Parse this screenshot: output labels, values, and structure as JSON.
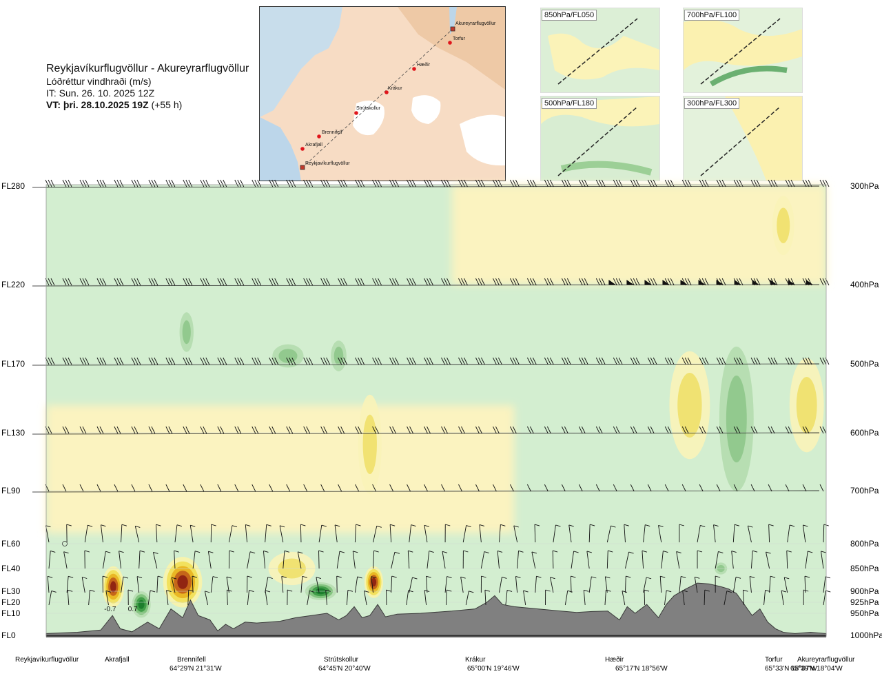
{
  "header": {
    "route": "Reykjavíkurflugvöllur - Akureyrarflugvöllur",
    "quantity": "Lóðréttur vindhraði (m/s)",
    "issue_time": "IT: Sun. 26. 10. 2025 12Z",
    "valid_prefix": "VT: þri. 28.10.2025 19Z",
    "valid_suffix": " (+55 h)"
  },
  "route_map": {
    "points": [
      {
        "name": "Akureyrarflugvöllur",
        "kind": "airport"
      },
      {
        "name": "Torfur",
        "kind": "waypoint"
      },
      {
        "name": "Hæðir",
        "kind": "waypoint"
      },
      {
        "name": "Krákur",
        "kind": "waypoint"
      },
      {
        "name": "Strútskollur",
        "kind": "waypoint"
      },
      {
        "name": "Brennifell",
        "kind": "waypoint"
      },
      {
        "name": "Akrafjall",
        "kind": "waypoint"
      },
      {
        "name": "Reykjavíkurflugvöllur",
        "kind": "airport"
      }
    ]
  },
  "level_maps": [
    {
      "label": "850hPa/FL050"
    },
    {
      "label": "700hPa/FL100"
    },
    {
      "label": "500hPa/FL180"
    },
    {
      "label": "300hPa/FL300"
    }
  ],
  "chart_data": {
    "type": "heatmap",
    "title": "Reykjavíkurflugvöllur - Akureyrarflugvöllur",
    "subtitle": "Lóðréttur vindhraði (m/s)",
    "x_range": [
      0,
      100
    ],
    "levels": [
      {
        "fl": "FL280",
        "hpa": "300hPa",
        "p": 300
      },
      {
        "fl": "FL220",
        "hpa": "400hPa",
        "p": 400
      },
      {
        "fl": "FL170",
        "hpa": "500hPa",
        "p": 500
      },
      {
        "fl": "FL130",
        "hpa": "600hPa",
        "p": 600
      },
      {
        "fl": "FL90",
        "hpa": "700hPa",
        "p": 700
      },
      {
        "fl": "FL60",
        "hpa": "800hPa",
        "p": 800
      },
      {
        "fl": "FL40",
        "hpa": "850hPa",
        "p": 850
      },
      {
        "fl": "FL30",
        "hpa": "900hPa",
        "p": 900
      },
      {
        "fl": "FL20",
        "hpa": "925hPa",
        "p": 925
      },
      {
        "fl": "FL10",
        "hpa": "950hPa",
        "p": 950
      },
      {
        "fl": "FL0",
        "hpa": "1000hPa",
        "p": 1000
      }
    ],
    "locations": [
      {
        "name": "Reykjavíkurflugvöllur",
        "coord": "",
        "x": 0
      },
      {
        "name": "Akrafjall",
        "coord": "",
        "x": 8.5
      },
      {
        "name": "Brennifell",
        "coord": "64°29'N 21°31'W",
        "x": 18.5
      },
      {
        "name": "Strútskollur",
        "coord": "64°45'N 20°40'W",
        "x": 38
      },
      {
        "name": "Krákur",
        "coord": "65°00'N 19°46'W",
        "x": 57
      },
      {
        "name": "Hæðir",
        "coord": "65°17'N 18°56'W",
        "x": 74
      },
      {
        "name": "Torfur",
        "coord": "65°33'N 18°07'W",
        "x": 94.5
      },
      {
        "name": "Akureyrarflugvöllur",
        "coord": "65°39'N 18°04'W",
        "x": 100
      }
    ],
    "annotations": [
      {
        "text": "-0.7",
        "x": 8.2,
        "p": 945
      },
      {
        "text": "0.7",
        "x": 11.1,
        "p": 945
      }
    ],
    "terrain_p": [
      [
        0,
        996
      ],
      [
        4,
        993
      ],
      [
        7,
        988
      ],
      [
        8.5,
        955
      ],
      [
        9.5,
        985
      ],
      [
        11,
        992
      ],
      [
        13,
        970
      ],
      [
        14.5,
        985
      ],
      [
        16,
        940
      ],
      [
        17.5,
        960
      ],
      [
        18.5,
        920
      ],
      [
        19.5,
        955
      ],
      [
        21,
        965
      ],
      [
        22,
        990
      ],
      [
        23,
        975
      ],
      [
        24,
        985
      ],
      [
        25.5,
        970
      ],
      [
        27,
        972
      ],
      [
        30,
        968
      ],
      [
        32,
        960
      ],
      [
        34,
        955
      ],
      [
        36,
        950
      ],
      [
        37.5,
        965
      ],
      [
        38.5,
        955
      ],
      [
        39.5,
        935
      ],
      [
        40.5,
        960
      ],
      [
        41.5,
        955
      ],
      [
        42.5,
        930
      ],
      [
        43.5,
        958
      ],
      [
        45,
        952
      ],
      [
        48,
        950
      ],
      [
        52,
        945
      ],
      [
        55,
        940
      ],
      [
        56.5,
        925
      ],
      [
        57.5,
        910
      ],
      [
        58.5,
        930
      ],
      [
        60,
        935
      ],
      [
        63,
        940
      ],
      [
        66,
        945
      ],
      [
        68,
        948
      ],
      [
        70,
        946
      ],
      [
        72,
        945
      ],
      [
        73.5,
        965
      ],
      [
        74.5,
        935
      ],
      [
        75.5,
        950
      ],
      [
        77,
        930
      ],
      [
        78.5,
        960
      ],
      [
        79.5,
        930
      ],
      [
        80.5,
        910
      ],
      [
        82,
        895
      ],
      [
        83.5,
        882
      ],
      [
        85,
        884
      ],
      [
        86.5,
        890
      ],
      [
        87.5,
        895
      ],
      [
        88.5,
        905
      ],
      [
        89.5,
        930
      ],
      [
        90.5,
        955
      ],
      [
        91.5,
        940
      ],
      [
        92.5,
        970
      ],
      [
        93.5,
        985
      ],
      [
        94.5,
        993
      ],
      [
        96,
        996
      ],
      [
        98,
        993
      ],
      [
        100,
        996
      ]
    ],
    "updraft_cells": [
      {
        "x": 82.5,
        "p": 560,
        "wx": 2.6,
        "wp": 160,
        "v": 0.3
      },
      {
        "x": 97.5,
        "p": 560,
        "wx": 2.2,
        "wp": 140,
        "v": 0.25
      },
      {
        "x": 94.5,
        "p": 340,
        "wx": 1.4,
        "wp": 60,
        "v": 0.25
      },
      {
        "x": 8.6,
        "p": 890,
        "wx": 1.4,
        "wp": 90,
        "v": 0.6
      },
      {
        "x": 17.5,
        "p": 880,
        "wx": 2.5,
        "wp": 110,
        "v": 0.9
      },
      {
        "x": 31.5,
        "p": 850,
        "wx": 3,
        "wp": 70,
        "v": 0.4
      },
      {
        "x": 42,
        "p": 880,
        "wx": 1.2,
        "wp": 70,
        "v": 0.7
      },
      {
        "x": 41.5,
        "p": 620,
        "wx": 1.5,
        "wp": 160,
        "v": 0.2
      }
    ],
    "downdraft_cells": [
      {
        "x": 88.5,
        "p": 580,
        "wx": 2.2,
        "wp": 220,
        "v": -0.5
      },
      {
        "x": 31,
        "p": 490,
        "wx": 2,
        "wp": 30,
        "v": -0.3
      },
      {
        "x": 37.5,
        "p": 490,
        "wx": 1,
        "wp": 40,
        "v": -0.3
      },
      {
        "x": 18,
        "p": 460,
        "wx": 0.9,
        "wp": 50,
        "v": -0.3
      },
      {
        "x": 12.2,
        "p": 930,
        "wx": 1.2,
        "wp": 60,
        "v": -0.7
      },
      {
        "x": 35.2,
        "p": 900,
        "wx": 2,
        "wp": 40,
        "v": -0.6
      },
      {
        "x": 86.5,
        "p": 850,
        "wx": 0.8,
        "wp": 25,
        "v": -0.4
      }
    ]
  }
}
